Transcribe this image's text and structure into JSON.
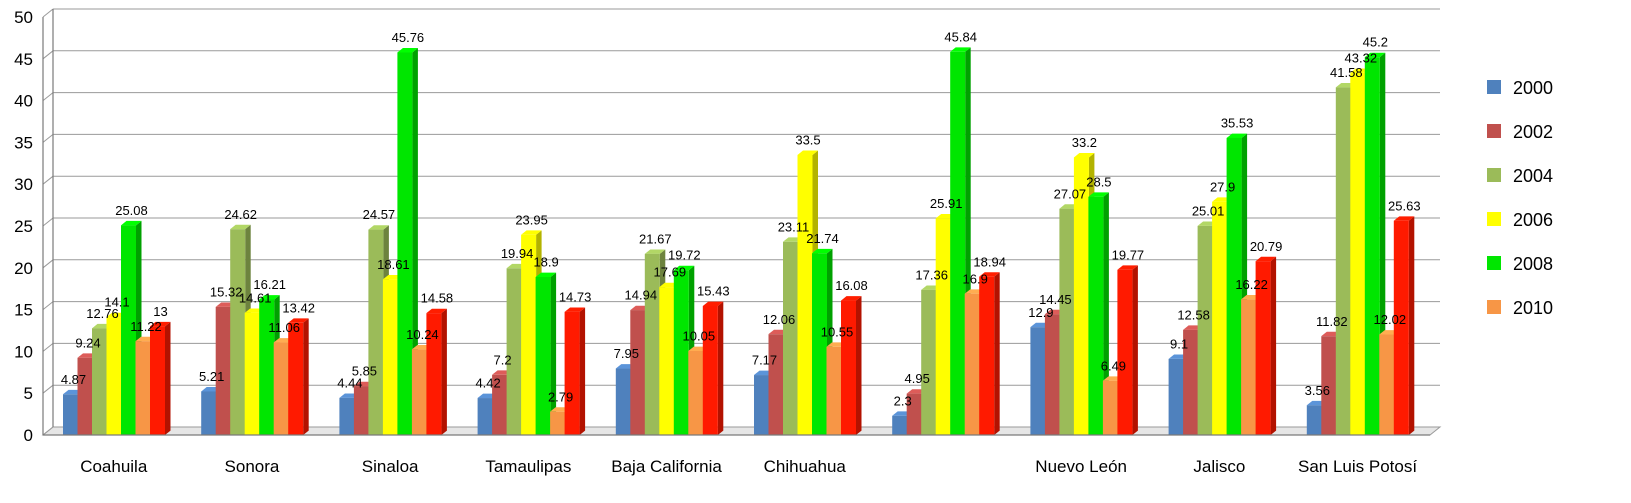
{
  "chart_data": {
    "type": "bar",
    "title": "",
    "xlabel": "",
    "ylabel": "",
    "ylim": [
      0,
      50
    ],
    "yticks": [
      0,
      5,
      10,
      15,
      20,
      25,
      30,
      35,
      40,
      45,
      50
    ],
    "grid": true,
    "legend_position": "right",
    "categories": [
      "Coahuila",
      "Sonora",
      "Sinaloa",
      "Tamaulipas",
      "Baja California",
      "Chihuahua",
      "",
      "Nuevo León",
      "Jalisco",
      "San Luis Potosí"
    ],
    "series": [
      {
        "name": "2000",
        "color": "#4f81bd",
        "values": [
          4.87,
          5.21,
          4.44,
          4.42,
          7.95,
          7.17,
          2.3,
          12.9,
          9.1,
          3.56
        ]
      },
      {
        "name": "2002",
        "color": "#c0504d",
        "values": [
          9.24,
          15.32,
          5.85,
          7.2,
          14.94,
          12.06,
          4.95,
          14.45,
          12.58,
          11.82
        ]
      },
      {
        "name": "2004",
        "color": "#9bbb59",
        "values": [
          12.76,
          24.62,
          24.57,
          19.94,
          21.67,
          23.11,
          17.36,
          27.07,
          25.01,
          41.58
        ]
      },
      {
        "name": "2006",
        "color": "#ffff00",
        "values": [
          14.1,
          14.61,
          18.61,
          23.95,
          17.69,
          33.5,
          25.91,
          33.2,
          27.9,
          43.32
        ]
      },
      {
        "name": "2008",
        "color": "#00e600",
        "values": [
          25.08,
          16.21,
          45.76,
          18.9,
          19.72,
          21.74,
          45.84,
          28.5,
          35.53,
          45.2
        ]
      },
      {
        "name": "2010",
        "color": "#f79646",
        "values": [
          11.22,
          11.06,
          10.24,
          2.79,
          10.05,
          10.55,
          16.9,
          6.49,
          16.22,
          12.02
        ]
      },
      {
        "name": "",
        "color": "#ff1a00",
        "values": [
          13,
          13.42,
          14.58,
          14.73,
          15.43,
          16.08,
          18.94,
          19.77,
          20.79,
          25.63
        ]
      }
    ]
  }
}
